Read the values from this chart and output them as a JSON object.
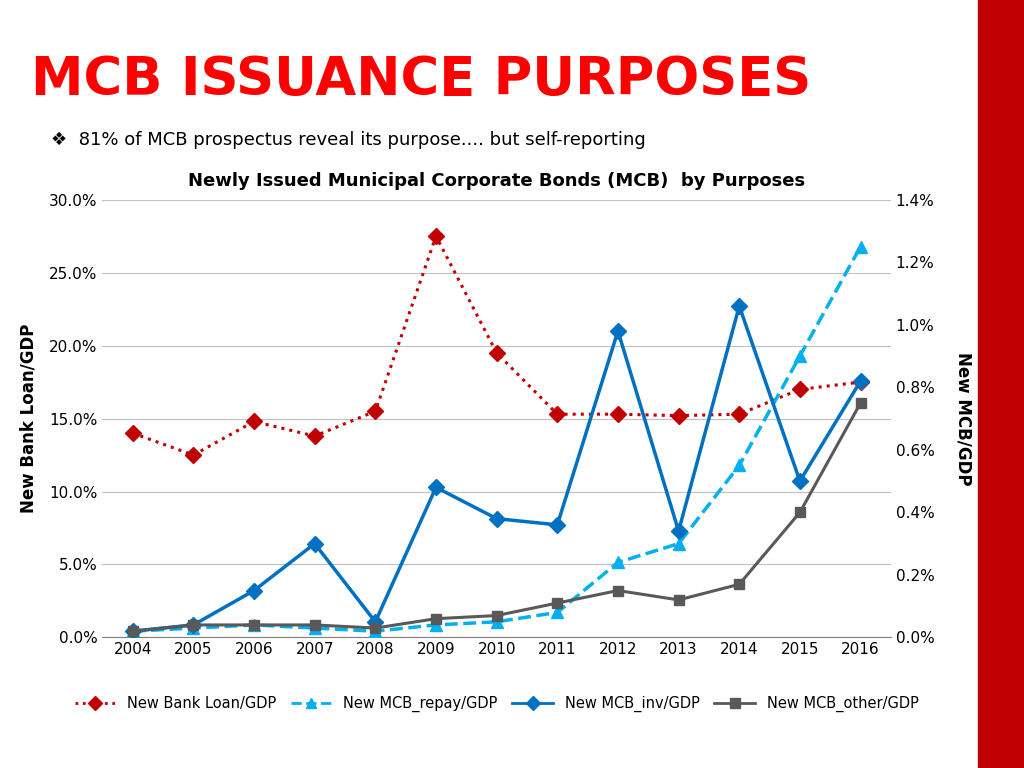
{
  "title_main": "MCB ISSUANCE PURPOSES",
  "subtitle": "❖  81% of MCB prospectus reveal its purpose.... but self-reporting",
  "chart_title": "Newly Issued Municipal Corporate Bonds (MCB)  by Purposes",
  "years": [
    2004,
    2005,
    2006,
    2007,
    2008,
    2009,
    2010,
    2011,
    2012,
    2013,
    2014,
    2015,
    2016
  ],
  "bank_loan_gdp": [
    14.0,
    12.5,
    14.8,
    13.8,
    15.5,
    27.5,
    19.5,
    15.3,
    15.3,
    15.2,
    15.3,
    17.0,
    17.5
  ],
  "mcb_repay_gdp": [
    0.02,
    0.03,
    0.04,
    0.03,
    0.02,
    0.04,
    0.05,
    0.08,
    0.24,
    0.3,
    0.55,
    0.9,
    1.25
  ],
  "mcb_inv_gdp": [
    0.02,
    0.04,
    0.15,
    0.3,
    0.05,
    0.48,
    0.38,
    0.36,
    0.98,
    0.34,
    1.06,
    0.5,
    0.82
  ],
  "mcb_other_gdp": [
    0.02,
    0.04,
    0.04,
    0.04,
    0.03,
    0.06,
    0.07,
    0.11,
    0.15,
    0.12,
    0.17,
    0.4,
    0.75
  ],
  "left_ylim": [
    0,
    30
  ],
  "right_ylim": [
    0,
    1.4
  ],
  "left_yticks": [
    0,
    5,
    10,
    15,
    20,
    25,
    30
  ],
  "right_yticks": [
    0.0,
    0.2,
    0.4,
    0.6,
    0.8,
    1.0,
    1.2,
    1.4
  ],
  "left_ylabel": "New Bank Loan/GDP",
  "right_ylabel": "New MCB/GDP",
  "bank_loan_color": "#c00000",
  "mcb_repay_color": "#00b0f0",
  "mcb_inv_color": "#0070c0",
  "mcb_other_color": "#595959",
  "title_color": "#ff0000",
  "subtitle_color": "#000000",
  "background_color": "#ffffff",
  "grid_color": "#c0c0c0",
  "legend_labels": [
    "New Bank Loan/GDP",
    "New MCB_repay/GDP",
    "New MCB_inv/GDP",
    "New MCB_other/GDP"
  ],
  "red_bar_color": "#c00000"
}
